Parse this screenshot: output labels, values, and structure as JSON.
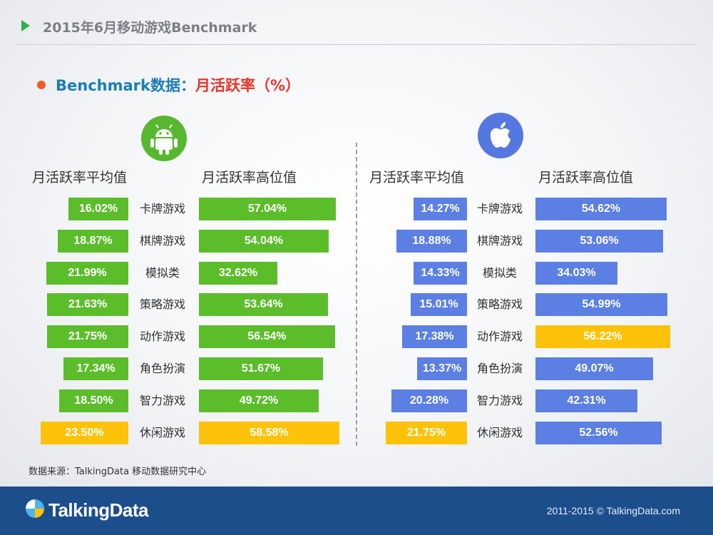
{
  "header": {
    "title": "2015年6月移动游戏Benchmark"
  },
  "subtitle": {
    "part1": "Benchmark数据：",
    "part2": "月活跃率（%）"
  },
  "colors": {
    "android": "#5cbd2b",
    "ios": "#5b7fe3",
    "highlight": "#ffc20a",
    "subtitle_blue": "#1a7fb8",
    "subtitle_red": "#e8352c"
  },
  "icons": {
    "android": "android-logo-icon",
    "ios": "apple-logo-icon"
  },
  "chart_data": {
    "type": "bar",
    "categories": [
      "卡牌游戏",
      "棋牌游戏",
      "模拟类",
      "策略游戏",
      "动作游戏",
      "角色扮演",
      "智力游戏",
      "休闲游戏"
    ],
    "unit": "%",
    "column_headers": {
      "average": "月活跃率平均值",
      "high": "月活跃率高位值"
    },
    "android": {
      "average": [
        "16.02%",
        "18.87%",
        "21.99%",
        "21.63%",
        "21.75%",
        "17.34%",
        "18.50%",
        "23.50%"
      ],
      "high": [
        "57.04%",
        "54.04%",
        "32.62%",
        "53.64%",
        "56.54%",
        "51.67%",
        "49.72%",
        "58.58%"
      ],
      "average_values": [
        16.02,
        18.87,
        21.99,
        21.63,
        21.75,
        17.34,
        18.5,
        23.5
      ],
      "high_values": [
        57.04,
        54.04,
        32.62,
        53.64,
        56.54,
        51.67,
        49.72,
        58.58
      ],
      "highlight_average": [
        7
      ],
      "highlight_high": [
        7
      ]
    },
    "ios": {
      "average": [
        "14.27%",
        "18.88%",
        "14.33%",
        "15.01%",
        "17.38%",
        "13.37%",
        "20.28%",
        "21.75%"
      ],
      "high": [
        "54.62%",
        "53.06%",
        "34.03%",
        "54.99%",
        "56.22%",
        "49.07%",
        "42.31%",
        "52.56%"
      ],
      "average_values": [
        14.27,
        18.88,
        14.33,
        15.01,
        17.38,
        13.37,
        20.28,
        21.75
      ],
      "high_values": [
        54.62,
        53.06,
        34.03,
        54.99,
        56.22,
        49.07,
        42.31,
        52.56
      ],
      "highlight_average": [
        7
      ],
      "highlight_high": [
        4
      ]
    }
  },
  "source": "数据来源：TalkingData 移动数据研究中心",
  "footer": {
    "logo_text": "TalkingData",
    "copyright": "2011-2015 © TalkingData.com"
  }
}
